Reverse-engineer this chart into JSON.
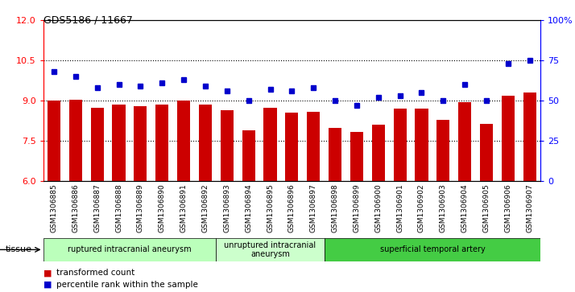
{
  "title": "GDS5186 / 11667",
  "samples": [
    "GSM1306885",
    "GSM1306886",
    "GSM1306887",
    "GSM1306888",
    "GSM1306889",
    "GSM1306890",
    "GSM1306891",
    "GSM1306892",
    "GSM1306893",
    "GSM1306894",
    "GSM1306895",
    "GSM1306896",
    "GSM1306897",
    "GSM1306898",
    "GSM1306899",
    "GSM1306900",
    "GSM1306901",
    "GSM1306902",
    "GSM1306903",
    "GSM1306904",
    "GSM1306905",
    "GSM1306906",
    "GSM1306907"
  ],
  "bar_values": [
    9.0,
    9.05,
    8.75,
    8.85,
    8.8,
    8.85,
    9.0,
    8.85,
    8.65,
    7.9,
    8.75,
    8.55,
    8.6,
    8.0,
    7.85,
    8.1,
    8.7,
    8.7,
    8.3,
    8.95,
    8.15,
    9.2,
    9.3
  ],
  "dot_values": [
    68,
    65,
    58,
    60,
    59,
    61,
    63,
    59,
    56,
    50,
    57,
    56,
    58,
    50,
    47,
    52,
    53,
    55,
    50,
    60,
    50,
    73,
    75
  ],
  "bar_color": "#cc0000",
  "dot_color": "#0000cc",
  "ylim_left": [
    6,
    12
  ],
  "ylim_right": [
    0,
    100
  ],
  "yticks_left": [
    6,
    7.5,
    9,
    10.5,
    12
  ],
  "yticks_right": [
    0,
    25,
    50,
    75,
    100
  ],
  "ytick_labels_right": [
    "0",
    "25",
    "50",
    "75",
    "100%"
  ],
  "hlines": [
    7.5,
    9.0,
    10.5
  ],
  "group_labels": [
    "ruptured intracranial aneurysm",
    "unruptured intracranial\naneurysm",
    "superficial temporal artery"
  ],
  "group_starts": [
    0,
    8,
    13
  ],
  "group_ends": [
    8,
    13,
    23
  ],
  "group_colors": [
    "#bbffbb",
    "#ccffcc",
    "#44cc44"
  ],
  "tissue_label": "tissue",
  "legend_bar_label": "transformed count",
  "legend_dot_label": "percentile rank within the sample",
  "plot_bg_color": "#ffffff"
}
